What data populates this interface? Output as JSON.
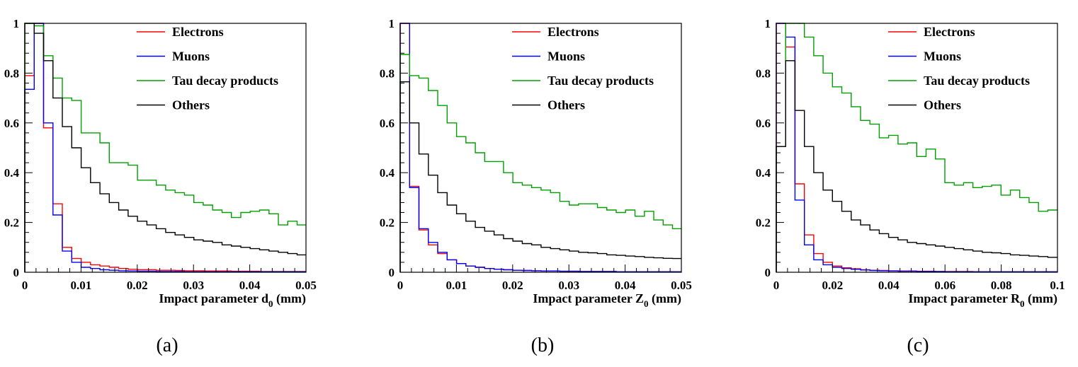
{
  "chart_data": [
    {
      "type": "line",
      "caption": "(a)",
      "xlabel_main": "Impact parameter d",
      "xlabel_sub": "0",
      "xlabel_unit": " (mm)",
      "xlim": [
        0,
        0.05
      ],
      "ylim": [
        0,
        1.0
      ],
      "xticks": [
        "0",
        "0.01",
        "0.02",
        "0.03",
        "0.04",
        "0.05"
      ],
      "xtick_values": [
        0,
        0.01,
        0.02,
        0.03,
        0.04,
        0.05
      ],
      "yticks": [
        "0",
        "0.2",
        "0.4",
        "0.6",
        "0.8",
        "1"
      ],
      "ytick_values": [
        0,
        0.2,
        0.4,
        0.6,
        0.8,
        1.0
      ],
      "bin_width": 0.00167,
      "legend_position": "top-right",
      "series": [
        {
          "name": "Electrons",
          "color": "#ff0000",
          "values": [
            0.79,
            1.0,
            0.58,
            0.275,
            0.1,
            0.055,
            0.04,
            0.03,
            0.025,
            0.02,
            0.015,
            0.012,
            0.01,
            0.01,
            0.008,
            0.008,
            0.007,
            0.006,
            0.006,
            0.005,
            0.005,
            0.005,
            0.004,
            0.004,
            0.004,
            0.003,
            0.003,
            0.003,
            0.003,
            0.003
          ]
        },
        {
          "name": "Muons",
          "color": "#0000ff",
          "values": [
            0.735,
            1.0,
            0.6,
            0.23,
            0.085,
            0.04,
            0.02,
            0.015,
            0.01,
            0.008,
            0.006,
            0.005,
            0.004,
            0.004,
            0.003,
            0.003,
            0.003,
            0.002,
            0.002,
            0.002,
            0.002,
            0.002,
            0.002,
            0.002,
            0.002,
            0.002,
            0.002,
            0.002,
            0.002,
            0.002
          ]
        },
        {
          "name": "Tau decay products",
          "color": "#00a000",
          "values": [
            1.0,
            0.99,
            0.87,
            0.78,
            0.7,
            0.69,
            0.56,
            0.56,
            0.52,
            0.44,
            0.44,
            0.43,
            0.37,
            0.37,
            0.35,
            0.33,
            0.32,
            0.31,
            0.28,
            0.27,
            0.25,
            0.24,
            0.22,
            0.24,
            0.245,
            0.25,
            0.235,
            0.19,
            0.205,
            0.19
          ]
        },
        {
          "name": "Others",
          "color": "#000000",
          "values": [
            1.0,
            0.96,
            0.85,
            0.7,
            0.585,
            0.5,
            0.42,
            0.36,
            0.315,
            0.28,
            0.25,
            0.225,
            0.205,
            0.19,
            0.175,
            0.16,
            0.15,
            0.14,
            0.13,
            0.125,
            0.12,
            0.11,
            0.105,
            0.1,
            0.095,
            0.09,
            0.085,
            0.08,
            0.075,
            0.07
          ]
        }
      ]
    },
    {
      "type": "line",
      "caption": "(b)",
      "xlabel_main": "Impact parameter Z",
      "xlabel_sub": "0",
      "xlabel_unit": " (mm)",
      "xlim": [
        0,
        0.05
      ],
      "ylim": [
        0,
        1.0
      ],
      "xticks": [
        "0",
        "0.01",
        "0.02",
        "0.03",
        "0.04",
        "0.05"
      ],
      "xtick_values": [
        0,
        0.01,
        0.02,
        0.03,
        0.04,
        0.05
      ],
      "yticks": [
        "0",
        "0.2",
        "0.4",
        "0.6",
        "0.8",
        "1"
      ],
      "ytick_values": [
        0,
        0.2,
        0.4,
        0.6,
        0.8,
        1.0
      ],
      "bin_width": 0.00167,
      "legend_position": "top-right",
      "series": [
        {
          "name": "Electrons",
          "color": "#ff0000",
          "values": [
            1.0,
            0.345,
            0.17,
            0.11,
            0.075,
            0.05,
            0.035,
            0.025,
            0.02,
            0.015,
            0.012,
            0.01,
            0.008,
            0.007,
            0.006,
            0.005,
            0.005,
            0.004,
            0.004,
            0.003,
            0.003,
            0.003,
            0.003,
            0.002,
            0.002,
            0.002,
            0.002,
            0.002,
            0.002,
            0.002
          ]
        },
        {
          "name": "Muons",
          "color": "#0000ff",
          "values": [
            1.0,
            0.34,
            0.175,
            0.12,
            0.08,
            0.05,
            0.035,
            0.025,
            0.02,
            0.015,
            0.012,
            0.01,
            0.008,
            0.007,
            0.006,
            0.005,
            0.005,
            0.004,
            0.004,
            0.003,
            0.003,
            0.003,
            0.003,
            0.002,
            0.002,
            0.002,
            0.002,
            0.002,
            0.002,
            0.002
          ]
        },
        {
          "name": "Tau decay products",
          "color": "#00a000",
          "values": [
            0.875,
            0.79,
            0.78,
            0.73,
            0.67,
            0.6,
            0.545,
            0.52,
            0.48,
            0.445,
            0.445,
            0.4,
            0.36,
            0.35,
            0.34,
            0.33,
            0.32,
            0.285,
            0.27,
            0.275,
            0.275,
            0.26,
            0.25,
            0.24,
            0.25,
            0.225,
            0.245,
            0.21,
            0.19,
            0.175
          ]
        },
        {
          "name": "Others",
          "color": "#000000",
          "values": [
            0.765,
            0.6,
            0.475,
            0.39,
            0.32,
            0.27,
            0.235,
            0.205,
            0.18,
            0.165,
            0.15,
            0.135,
            0.125,
            0.115,
            0.11,
            0.1,
            0.095,
            0.09,
            0.085,
            0.08,
            0.078,
            0.075,
            0.07,
            0.068,
            0.065,
            0.063,
            0.06,
            0.058,
            0.056,
            0.055
          ]
        }
      ]
    },
    {
      "type": "line",
      "caption": "(c)",
      "xlabel_main": "Impact parameter R",
      "xlabel_sub": "0",
      "xlabel_unit": " (mm)",
      "xlim": [
        0,
        0.1
      ],
      "ylim": [
        0,
        1.0
      ],
      "xticks": [
        "0",
        "0.02",
        "0.04",
        "0.06",
        "0.08",
        "0.1"
      ],
      "xtick_values": [
        0,
        0.02,
        0.04,
        0.06,
        0.08,
        0.1
      ],
      "yticks": [
        "0",
        "0.2",
        "0.4",
        "0.6",
        "0.8",
        "1"
      ],
      "ytick_values": [
        0,
        0.2,
        0.4,
        0.6,
        0.8,
        1.0
      ],
      "bin_width": 0.00333,
      "legend_position": "top-right",
      "series": [
        {
          "name": "Electrons",
          "color": "#ff0000",
          "values": [
            1.0,
            0.905,
            0.355,
            0.15,
            0.075,
            0.04,
            0.025,
            0.018,
            0.014,
            0.01,
            0.008,
            0.007,
            0.006,
            0.005,
            0.005,
            0.004,
            0.004,
            0.003,
            0.003,
            0.003,
            0.003,
            0.002,
            0.002,
            0.002,
            0.002,
            0.002,
            0.002,
            0.002,
            0.002,
            0.002
          ]
        },
        {
          "name": "Muons",
          "color": "#0000ff",
          "values": [
            1.0,
            0.945,
            0.29,
            0.11,
            0.05,
            0.03,
            0.02,
            0.015,
            0.012,
            0.009,
            0.007,
            0.006,
            0.005,
            0.004,
            0.004,
            0.003,
            0.003,
            0.003,
            0.002,
            0.002,
            0.002,
            0.002,
            0.002,
            0.002,
            0.002,
            0.002,
            0.002,
            0.002,
            0.002,
            0.002
          ]
        },
        {
          "name": "Tau decay products",
          "color": "#00a000",
          "values": [
            0.505,
            1.0,
            1.0,
            0.945,
            0.87,
            0.8,
            0.745,
            0.72,
            0.665,
            0.61,
            0.595,
            0.54,
            0.55,
            0.515,
            0.52,
            0.465,
            0.495,
            0.455,
            0.36,
            0.35,
            0.36,
            0.34,
            0.345,
            0.35,
            0.31,
            0.33,
            0.3,
            0.28,
            0.245,
            0.25
          ]
        },
        {
          "name": "Others",
          "color": "#000000",
          "values": [
            0.505,
            0.85,
            0.65,
            0.505,
            0.4,
            0.33,
            0.285,
            0.245,
            0.21,
            0.19,
            0.17,
            0.155,
            0.14,
            0.13,
            0.12,
            0.115,
            0.11,
            0.105,
            0.1,
            0.095,
            0.09,
            0.085,
            0.08,
            0.078,
            0.075,
            0.07,
            0.068,
            0.065,
            0.063,
            0.06
          ]
        }
      ]
    }
  ]
}
